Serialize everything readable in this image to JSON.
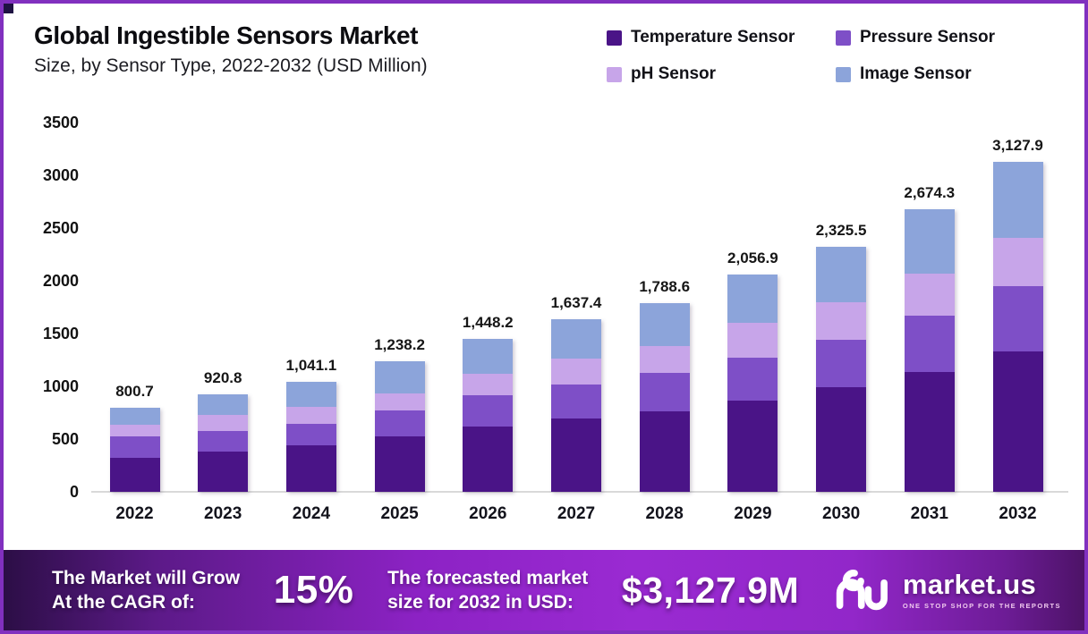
{
  "header": {
    "title": "Global Ingestible Sensors Market",
    "subtitle": "Size, by Sensor Type, 2022-2032 (USD Million)"
  },
  "chart_data": {
    "type": "bar",
    "stacked": true,
    "title": "Global Ingestible Sensors Market Size, by Sensor Type, 2022-2032 (USD Million)",
    "categories": [
      "2022",
      "2023",
      "2024",
      "2025",
      "2026",
      "2027",
      "2028",
      "2029",
      "2030",
      "2031",
      "2032"
    ],
    "series": [
      {
        "name": "Temperature Sensor",
        "color": "#4a1487",
        "values": [
          325,
          379,
          442,
          522,
          620,
          696,
          765,
          868,
          987,
          1135,
          1333
        ]
      },
      {
        "name": "Pressure Sensor",
        "color": "#7e4fc7",
        "values": [
          198,
          197,
          206,
          245,
          291,
          319,
          365,
          406,
          451,
          536,
          620
        ]
      },
      {
        "name": "pH Sensor",
        "color": "#c7a5e9",
        "values": [
          112,
          150,
          161,
          168,
          211,
          245,
          255,
          326,
          358,
          394,
          457
        ]
      },
      {
        "name": "Image Sensor",
        "color": "#8ca4da",
        "values": [
          165.7,
          194.8,
          232.1,
          303.2,
          326.2,
          377.4,
          403.6,
          456.9,
          529.5,
          609.3,
          717.9
        ]
      }
    ],
    "totals": [
      800.7,
      920.8,
      1041.1,
      1238.2,
      1448.2,
      1637.4,
      1788.6,
      2056.9,
      2325.5,
      2674.3,
      3127.9
    ],
    "total_labels": [
      "800.7",
      "920.8",
      "1,041.1",
      "1,238.2",
      "1,448.2",
      "1,637.4",
      "1,788.6",
      "2,056.9",
      "2,325.5",
      "2,674.3",
      "3,127.9"
    ],
    "ylabel": "",
    "xlabel": "",
    "ylim": [
      0,
      3500
    ],
    "yticks": [
      0,
      500,
      1000,
      1500,
      2000,
      2500,
      3000,
      3500
    ],
    "grid": false,
    "legend_position": "top-right"
  },
  "banner": {
    "cagr_label_line1": "The Market will Grow",
    "cagr_label_line2": "At the CAGR of:",
    "cagr_value": "15%",
    "forecast_label_line1": "The forecasted market",
    "forecast_label_line2": "size for 2032 in USD:",
    "forecast_value": "$3,127.9M",
    "brand_name": "market.us",
    "brand_tagline": "ONE STOP SHOP FOR THE REPORTS"
  }
}
